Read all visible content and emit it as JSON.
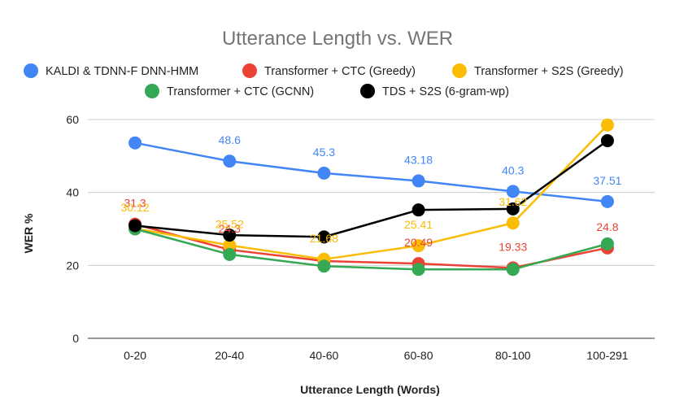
{
  "chart_data": {
    "type": "line",
    "title": "Utterance Length vs. WER",
    "xlabel": "Utterance Length (Words)",
    "ylabel": "WER %",
    "categories": [
      "0-20",
      "20-40",
      "40-60",
      "60-80",
      "80-100",
      "100-291"
    ],
    "ylim": [
      0,
      60
    ],
    "yticks": [
      0,
      20,
      40,
      60
    ],
    "grid": true,
    "legend_position": "top",
    "series": [
      {
        "name": "KALDI & TDNN-F DNN-HMM",
        "color": "#4285f4",
        "values": [
          53.6,
          48.6,
          45.3,
          43.18,
          40.3,
          37.51
        ],
        "labels": [
          "",
          "48.6",
          "45.3",
          "43.18",
          "40.3",
          "37.51"
        ]
      },
      {
        "name": "Transformer + CTC (Greedy)",
        "color": "#ea4335",
        "values": [
          31.3,
          24.3,
          21.2,
          20.49,
          19.33,
          24.8
        ],
        "labels": [
          "31.3",
          "24.3",
          "",
          "20.49",
          "19.33",
          "24.8"
        ]
      },
      {
        "name": "Transformer + S2S (Greedy)",
        "color": "#fbbc04",
        "values": [
          30.12,
          25.52,
          21.68,
          25.41,
          31.62,
          58.5
        ],
        "labels": [
          "30.12",
          "25.52",
          "21.68",
          "25.41",
          "31.62",
          ""
        ]
      },
      {
        "name": "Transformer + CTC (GCNN)",
        "color": "#34a853",
        "values": [
          30.0,
          23.0,
          19.8,
          18.9,
          18.9,
          25.9
        ],
        "labels": [
          "",
          "",
          "",
          "",
          "",
          ""
        ]
      },
      {
        "name": "TDS + S2S (6-gram-wp)",
        "color": "#000000",
        "values": [
          30.9,
          28.3,
          27.8,
          35.2,
          35.5,
          54.2
        ],
        "labels": [
          "",
          "",
          "",
          "",
          "",
          ""
        ]
      }
    ]
  }
}
